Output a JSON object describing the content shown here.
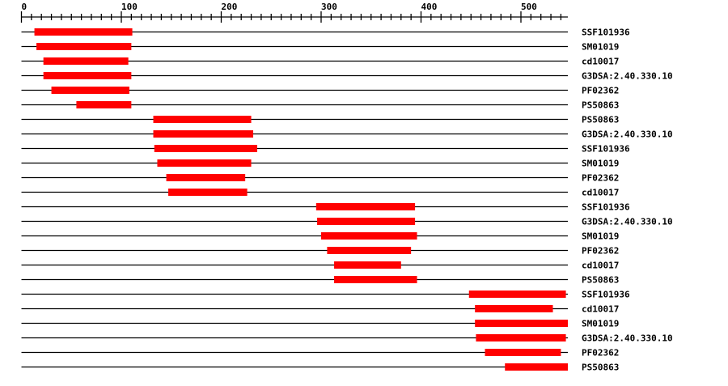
{
  "chart_data": {
    "type": "bar",
    "subtype": "interval-tracks",
    "x_ticks": [
      0,
      100,
      200,
      300,
      400,
      500
    ],
    "x_minor_tick_step": 10,
    "xlim": [
      0,
      547
    ],
    "bar_color": "#ff0000",
    "tracks": [
      {
        "label": "SSF101936",
        "start": 13,
        "end": 111
      },
      {
        "label": "SM01019",
        "start": 15,
        "end": 110
      },
      {
        "label": "cd10017",
        "start": 22,
        "end": 107
      },
      {
        "label": "G3DSA:2.40.330.10",
        "start": 22,
        "end": 110
      },
      {
        "label": "PF02362",
        "start": 30,
        "end": 108
      },
      {
        "label": "PS50863",
        "start": 55,
        "end": 110
      },
      {
        "label": "PS50863",
        "start": 132,
        "end": 230
      },
      {
        "label": "G3DSA:2.40.330.10",
        "start": 132,
        "end": 232
      },
      {
        "label": "SSF101936",
        "start": 133,
        "end": 236
      },
      {
        "label": "SM01019",
        "start": 136,
        "end": 230
      },
      {
        "label": "PF02362",
        "start": 145,
        "end": 224
      },
      {
        "label": "cd10017",
        "start": 147,
        "end": 226
      },
      {
        "label": "SSF101936",
        "start": 295,
        "end": 394
      },
      {
        "label": "G3DSA:2.40.330.10",
        "start": 296,
        "end": 394
      },
      {
        "label": "SM01019",
        "start": 300,
        "end": 396
      },
      {
        "label": "PF02362",
        "start": 306,
        "end": 390
      },
      {
        "label": "cd10017",
        "start": 313,
        "end": 380
      },
      {
        "label": "PS50863",
        "start": 313,
        "end": 396
      },
      {
        "label": "SSF101936",
        "start": 448,
        "end": 545
      },
      {
        "label": "cd10017",
        "start": 454,
        "end": 532
      },
      {
        "label": "SM01019",
        "start": 454,
        "end": 547
      },
      {
        "label": "G3DSA:2.40.330.10",
        "start": 455,
        "end": 545
      },
      {
        "label": "PF02362",
        "start": 464,
        "end": 540
      },
      {
        "label": "PS50863",
        "start": 484,
        "end": 547
      }
    ]
  }
}
